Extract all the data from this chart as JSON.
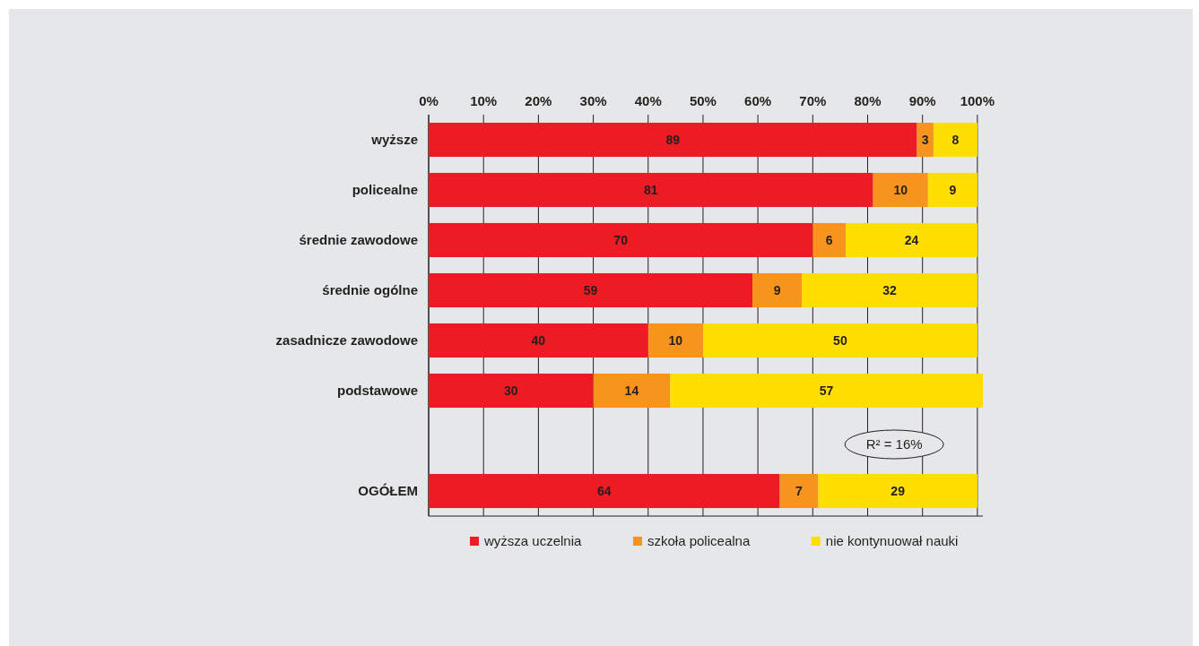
{
  "chart_data": {
    "type": "bar",
    "orientation": "horizontal",
    "stacked": true,
    "categories": [
      "wyższe",
      "policealne",
      "średnie zawodowe",
      "średnie ogólne",
      "zasadnicze zawodowe",
      "podstawowe",
      null,
      "OGÓŁEM"
    ],
    "series": [
      {
        "name": "wyższa uczelnia",
        "color": "#ed1c24",
        "values": [
          89,
          81,
          70,
          59,
          40,
          30,
          null,
          64
        ]
      },
      {
        "name": "szkoła policealna",
        "color": "#f7941d",
        "values": [
          3,
          10,
          6,
          9,
          10,
          14,
          null,
          7
        ]
      },
      {
        "name": "nie kontynuował nauki",
        "color": "#ffde00",
        "values": [
          8,
          9,
          24,
          32,
          50,
          57,
          null,
          29
        ]
      }
    ],
    "xlim": [
      0,
      101
    ],
    "xticks": [
      {
        "value": 0,
        "label": "0%"
      },
      {
        "value": 10,
        "label": "10%"
      },
      {
        "value": 20,
        "label": "20%"
      },
      {
        "value": 30,
        "label": "30%"
      },
      {
        "value": 40,
        "label": "40%"
      },
      {
        "value": 50,
        "label": "50%"
      },
      {
        "value": 60,
        "label": "60%"
      },
      {
        "value": 70,
        "label": "70%"
      },
      {
        "value": 80,
        "label": "80%"
      },
      {
        "value": 90,
        "label": "90%"
      },
      {
        "value": 100,
        "label": "100%"
      }
    ],
    "grid": "x",
    "legend": "bottom",
    "data_labels": true,
    "annotations": [
      "R² = 16%"
    ]
  }
}
